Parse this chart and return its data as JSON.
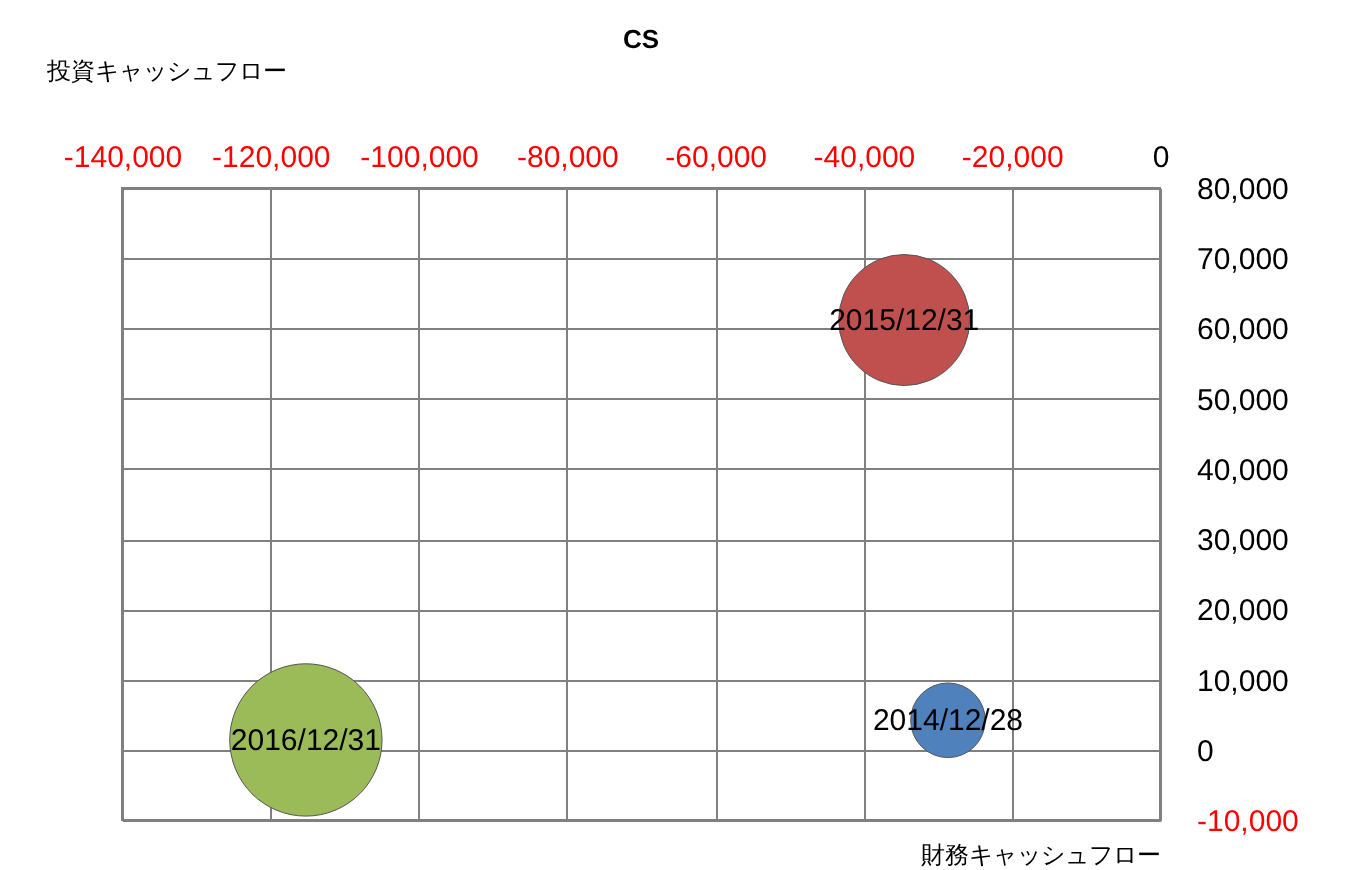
{
  "chart_data": {
    "type": "bubble",
    "title": "CS",
    "xlabel": "財務キャッシュフロー",
    "ylabel": "投資キャッシュフロー",
    "x": [
      -28600,
      -34500,
      -115200
    ],
    "values": [
      4200,
      61200,
      1400
    ],
    "sizes": [
      0.24,
      0.74,
      1
    ],
    "colors": [
      "#4f81bd",
      "#c0504d",
      "#9bbb59"
    ],
    "annotations": [
      {
        "text": "2014/12/28",
        "x": -28600,
        "y": 4200
      },
      {
        "text": "2015/12/31",
        "x": -34500,
        "y": 61200
      },
      {
        "text": "2016/12/31",
        "x": -115200,
        "y": 1400
      }
    ],
    "xlim": [
      -140000,
      0
    ],
    "xticks": [
      {
        "value": -140000,
        "label": "-140,000"
      },
      {
        "value": -120000,
        "label": "-120,000"
      },
      {
        "value": -100000,
        "label": "-100,000"
      },
      {
        "value": -80000,
        "label": "-80,000"
      },
      {
        "value": -60000,
        "label": "-60,000"
      },
      {
        "value": -40000,
        "label": "-40,000"
      },
      {
        "value": -20000,
        "label": "-20,000"
      },
      0
    ],
    "ylim": [
      -10000,
      80000
    ],
    "yticks": [
      {
        "value": -10000,
        "label": "-10,000"
      },
      0,
      {
        "value": 10000,
        "label": "10,000"
      },
      {
        "value": 20000,
        "label": "20,000"
      },
      {
        "value": 30000,
        "label": "30,000"
      },
      {
        "value": 40000,
        "label": "40,000"
      },
      {
        "value": 50000,
        "label": "50,000"
      },
      {
        "value": 60000,
        "label": "60,000"
      },
      {
        "value": 70000,
        "label": "70,000"
      },
      {
        "value": 80000,
        "label": "80,000"
      }
    ],
    "grid": true
  }
}
